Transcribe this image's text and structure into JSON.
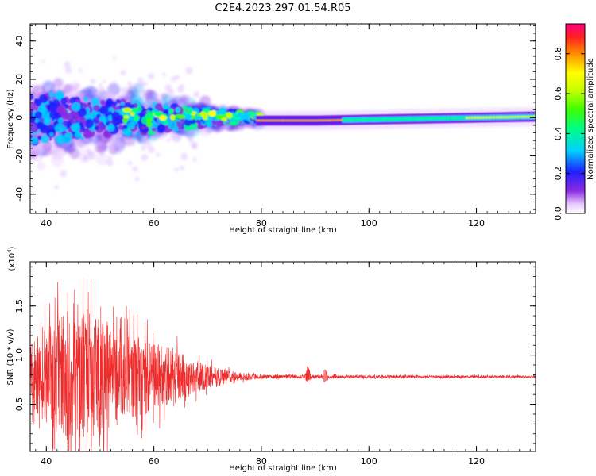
{
  "title": "C2E4.2023.297.01.54.R05",
  "chart_data": [
    {
      "type": "heatmap",
      "name": "spectrogram",
      "xlabel": "Height of straight line (km)",
      "ylabel": "Frequency (Hz)",
      "xlim": [
        37,
        131
      ],
      "ylim": [
        -50,
        49
      ],
      "xticks": [
        "40",
        "60",
        "80",
        "100",
        "120"
      ],
      "xtick_values": [
        40,
        60,
        80,
        100,
        120
      ],
      "yticks": [
        "-40",
        "-20",
        "0",
        "20",
        "40"
      ],
      "ytick_values": [
        -40,
        -20,
        0,
        20,
        40
      ],
      "colorbar": {
        "label": "Normalized spectral amplitude",
        "ticks": [
          "0.0",
          "0.2",
          "0.4",
          "0.6",
          "0.8"
        ],
        "tick_values": [
          0.0,
          0.2,
          0.4,
          0.6,
          0.8
        ],
        "range": [
          0,
          0.95
        ]
      },
      "band_center_hz": [
        {
          "x": 80,
          "y": -1.5
        },
        {
          "x": 90,
          "y": -1.5
        },
        {
          "x": 100,
          "y": -1.0
        },
        {
          "x": 110,
          "y": -0.5
        },
        {
          "x": 120,
          "y": 0.0
        },
        {
          "x": 130,
          "y": 0.5
        }
      ]
    },
    {
      "type": "line",
      "name": "snr",
      "xlabel": "Height of straight line (km)",
      "ylabel": "SNR (10 * v/v)",
      "multiplier_label": "(x10",
      "multiplier_exp": "4",
      "xlim": [
        37,
        131
      ],
      "ylim": [
        0.02,
        1.95
      ],
      "xticks": [
        "40",
        "60",
        "80",
        "100",
        "120"
      ],
      "xtick_values": [
        40,
        60,
        80,
        100,
        120
      ],
      "yticks": [
        "0.5",
        "1.0",
        "1.5"
      ],
      "ytick_values": [
        0.5,
        1.0,
        1.5
      ],
      "color": "#ee2a2a",
      "baseline": 0.78,
      "envelope": [
        {
          "x": 37,
          "a": 0.4
        },
        {
          "x": 42,
          "a": 0.75
        },
        {
          "x": 45,
          "a": 0.85
        },
        {
          "x": 50,
          "a": 0.75
        },
        {
          "x": 55,
          "a": 0.55
        },
        {
          "x": 60,
          "a": 0.45
        },
        {
          "x": 65,
          "a": 0.3
        },
        {
          "x": 70,
          "a": 0.15
        },
        {
          "x": 75,
          "a": 0.06
        },
        {
          "x": 80,
          "a": 0.025
        },
        {
          "x": 100,
          "a": 0.02
        },
        {
          "x": 131,
          "a": 0.015
        }
      ],
      "features": [
        {
          "x": 88.7,
          "y": 0.88
        },
        {
          "x": 91.8,
          "y": 0.85
        }
      ]
    }
  ]
}
